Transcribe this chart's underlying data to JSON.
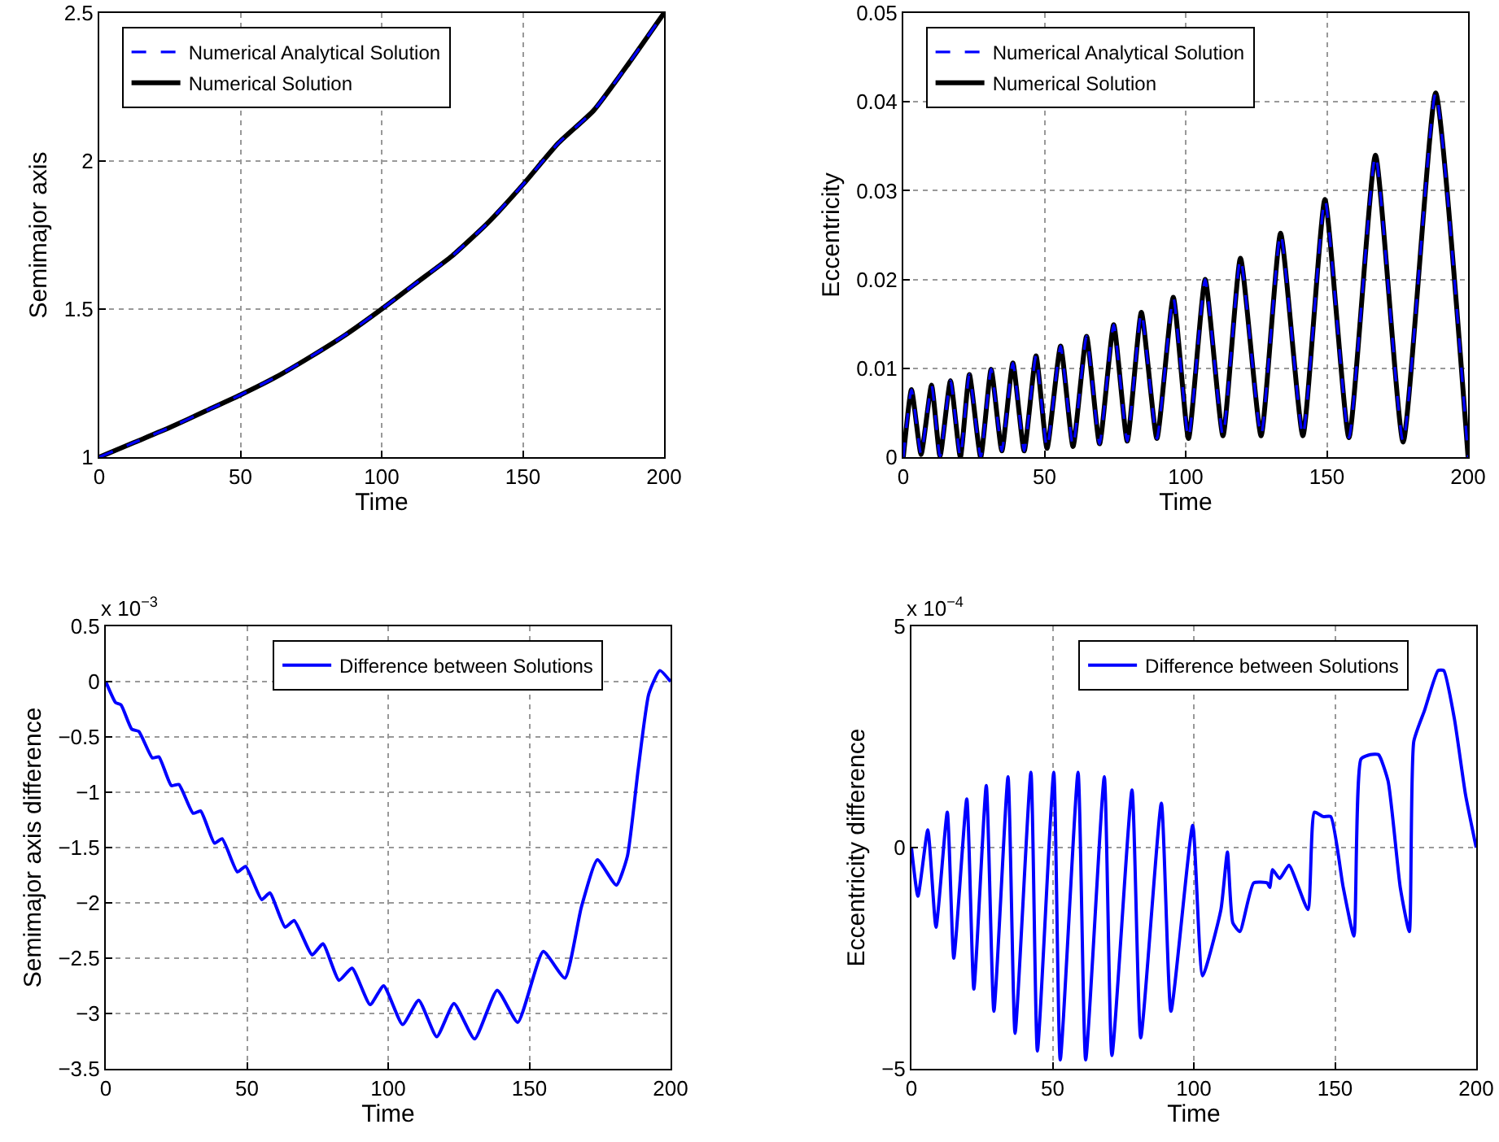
{
  "chart_data": [
    {
      "type": "line",
      "xlabel": "Time",
      "ylabel": "Semimajor axis",
      "xlim": [
        0,
        200
      ],
      "xticks": [
        0,
        50,
        100,
        150,
        200
      ],
      "ylim": [
        1,
        2.5
      ],
      "yticks": [
        1,
        1.5,
        2,
        2.5
      ],
      "grid": true,
      "legend": "top left",
      "x": [
        0,
        12.5,
        25,
        37.5,
        50,
        62.5,
        75,
        87.5,
        100,
        112.5,
        125,
        137.5,
        150,
        162.5,
        175,
        187.5,
        200
      ],
      "series": [
        {
          "name": "Numerical Analytical Solution",
          "color": "#0000ff",
          "line_style": "dashed",
          "values": [
            1,
            1.05,
            1.1,
            1.155,
            1.21,
            1.27,
            1.34,
            1.415,
            1.5,
            1.59,
            1.68,
            1.79,
            1.92,
            2.06,
            2.17,
            2.33,
            2.5
          ]
        },
        {
          "name": "Numerical Solution",
          "color": "#000000",
          "line_style": "solid",
          "values": [
            1,
            1.05,
            1.1,
            1.155,
            1.21,
            1.27,
            1.34,
            1.415,
            1.5,
            1.59,
            1.68,
            1.79,
            1.92,
            2.06,
            2.17,
            2.33,
            2.5
          ]
        }
      ]
    },
    {
      "type": "line",
      "xlabel": "Time",
      "ylabel": "Eccentricity",
      "xlim": [
        0,
        200
      ],
      "xticks": [
        0,
        50,
        100,
        150,
        200
      ],
      "ylim": [
        0,
        0.05
      ],
      "yticks": [
        0,
        0.01,
        0.02,
        0.03,
        0.04,
        0.05
      ],
      "grid": true,
      "legend": "top left",
      "x": [
        0,
        2.9,
        6.3,
        10,
        13,
        16.7,
        20.2,
        23.4,
        27.4,
        31.1,
        34.9,
        38.8,
        42.8,
        47,
        50.9,
        55.7,
        60.1,
        64.9,
        69.5,
        74.5,
        79.3,
        84.3,
        89.8,
        95.6,
        101,
        106.9,
        113.2,
        119.4,
        126.7,
        133.6,
        141.5,
        149.3,
        157.8,
        167.2,
        177,
        188.5,
        200
      ],
      "series": [
        {
          "name": "Numerical Analytical Solution",
          "color": "#0000ff",
          "line_style": "dashed",
          "values": [
            0,
            0.0076,
            0.0003,
            0.0081,
            0.0001,
            0.0086,
            0,
            0.0093,
            0,
            0.0099,
            0.0007,
            0.0106,
            0.0007,
            0.0114,
            0.001,
            0.0125,
            0.0012,
            0.0136,
            0.0015,
            0.0149,
            0.0018,
            0.0163,
            0.0021,
            0.018,
            0.0021,
            0.02,
            0.0024,
            0.0224,
            0.0024,
            0.0252,
            0.0024,
            0.029,
            0.0022,
            0.034,
            0.0017,
            0.041,
            0
          ]
        },
        {
          "name": "Numerical Solution",
          "color": "#000000",
          "line_style": "solid",
          "values": [
            0,
            0.0076,
            0.0003,
            0.0081,
            0.0001,
            0.0086,
            0,
            0.0093,
            0,
            0.0099,
            0.0007,
            0.0106,
            0.0007,
            0.0114,
            0.001,
            0.0125,
            0.0012,
            0.0136,
            0.0015,
            0.0149,
            0.0018,
            0.0163,
            0.0021,
            0.018,
            0.0021,
            0.02,
            0.0024,
            0.0224,
            0.0024,
            0.0252,
            0.0024,
            0.029,
            0.0022,
            0.034,
            0.0017,
            0.041,
            0
          ]
        }
      ]
    },
    {
      "type": "line",
      "xlabel": "Time",
      "ylabel": "Semimajor axis difference",
      "xlim": [
        0,
        200
      ],
      "xticks": [
        0,
        50,
        100,
        150,
        200
      ],
      "ylim": [
        -3.5,
        0.5
      ],
      "yticks": [
        {
          "value": -3.5,
          "label": "−3.5"
        },
        {
          "value": -3,
          "label": "−3"
        },
        {
          "value": -2.5,
          "label": "−2.5"
        },
        {
          "value": -2,
          "label": "−2"
        },
        {
          "value": -1.5,
          "label": "−1.5"
        },
        {
          "value": -1,
          "label": "−1"
        },
        {
          "value": -0.5,
          "label": "−0.5"
        },
        {
          "value": 0,
          "label": "0"
        },
        {
          "value": 0.5,
          "label": "0.5"
        }
      ],
      "grid": true,
      "legend": "top right",
      "annotations": [
        "x 10$^{−3}$"
      ],
      "x": [
        0,
        3.5,
        5.4,
        9.2,
        11.7,
        16.5,
        18.8,
        23.2,
        25.9,
        30.9,
        33.6,
        38.5,
        41.2,
        46.6,
        49.5,
        55.2,
        58.1,
        63.5,
        66.7,
        73.1,
        76.9,
        82.6,
        87.2,
        93.6,
        98.4,
        105.1,
        110.8,
        117.2,
        123.3,
        130.6,
        138.6,
        145.9,
        154.9,
        162.6,
        168.4,
        174.1,
        180.8,
        184.7,
        188.5,
        192.3,
        196.2,
        200
      ],
      "series": [
        {
          "name": "Difference between Solutions",
          "color": "#0000ff",
          "line_style": "solid",
          "values": [
            0,
            -0.19,
            -0.21,
            -0.43,
            -0.45,
            -0.69,
            -0.68,
            -0.94,
            -0.93,
            -1.19,
            -1.17,
            -1.46,
            -1.42,
            -1.72,
            -1.67,
            -1.97,
            -1.91,
            -2.22,
            -2.16,
            -2.47,
            -2.37,
            -2.7,
            -2.59,
            -2.92,
            -2.75,
            -3.1,
            -2.88,
            -3.21,
            -2.91,
            -3.23,
            -2.79,
            -3.08,
            -2.44,
            -2.68,
            -2.04,
            -1.61,
            -1.84,
            -1.58,
            -0.8,
            -0.11,
            0.1,
            0
          ]
        }
      ]
    },
    {
      "type": "line",
      "xlabel": "Time",
      "ylabel": "Eccentricity difference",
      "xlim": [
        0,
        200
      ],
      "xticks": [
        0,
        50,
        100,
        150,
        200
      ],
      "ylim": [
        -5,
        5
      ],
      "yticks": [
        {
          "value": -5,
          "label": "−5"
        },
        0,
        5
      ],
      "grid": true,
      "legend": "top right",
      "annotations": [
        "x 10$^{−4}$"
      ],
      "x": [
        0,
        2.3,
        5.8,
        8.7,
        12.7,
        15,
        19.6,
        22.1,
        26.5,
        29.2,
        34.2,
        36.7,
        42.3,
        44.6,
        50.4,
        52.7,
        59,
        61.7,
        68.3,
        71,
        78.1,
        81.2,
        88.5,
        91.9,
        99.6,
        103.1,
        109.6,
        111.9,
        113.8,
        116.3,
        121.2,
        126,
        126.9,
        127.9,
        130.4,
        133.7,
        140.4,
        142.7,
        145.8,
        148.5,
        152.9,
        156.7,
        159.2,
        162.5,
        165.4,
        168.8,
        173.1,
        176.3,
        177.9,
        181.7,
        186.5,
        188.5,
        192.3,
        196.2,
        200
      ],
      "series": [
        {
          "name": "Difference between Solutions",
          "color": "#0000ff",
          "line_style": "solid",
          "values": [
            0,
            -1.1,
            0.4,
            -1.8,
            0.8,
            -2.5,
            1.1,
            -3.2,
            1.4,
            -3.7,
            1.6,
            -4.2,
            1.7,
            -4.6,
            1.7,
            -4.8,
            1.7,
            -4.8,
            1.6,
            -4.7,
            1.3,
            -4.3,
            1,
            -3.7,
            0.5,
            -2.9,
            -1.4,
            -0.1,
            -1.7,
            -1.9,
            -0.8,
            -0.8,
            -0.9,
            -0.5,
            -0.7,
            -0.4,
            -1.4,
            0.8,
            0.7,
            0.7,
            -0.9,
            -2,
            2,
            2.1,
            2.1,
            1.5,
            -0.9,
            -1.9,
            2.4,
            3.1,
            4,
            4,
            2.9,
            1.2,
            0
          ]
        }
      ]
    }
  ]
}
